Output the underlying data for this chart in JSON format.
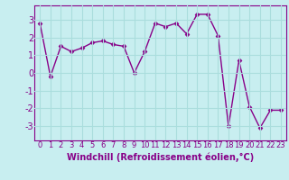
{
  "x": [
    0,
    1,
    2,
    3,
    4,
    5,
    6,
    7,
    8,
    9,
    10,
    11,
    12,
    13,
    14,
    15,
    16,
    17,
    18,
    19,
    20,
    21,
    22,
    23
  ],
  "y": [
    2.8,
    -0.2,
    1.5,
    1.2,
    1.4,
    1.7,
    1.8,
    1.6,
    1.5,
    0.0,
    1.2,
    2.8,
    2.6,
    2.8,
    2.2,
    3.3,
    3.3,
    2.1,
    -3.0,
    0.7,
    -1.9,
    -3.1,
    -2.1,
    -2.1
  ],
  "line_color": "#880088",
  "marker": "D",
  "marker_size": 2.5,
  "bg_color": "#c8eef0",
  "grid_color": "#aadddd",
  "ylim": [
    -3.8,
    3.8
  ],
  "yticks": [
    -3,
    -2,
    -1,
    0,
    1,
    2,
    3
  ],
  "xticks": [
    0,
    1,
    2,
    3,
    4,
    5,
    6,
    7,
    8,
    9,
    10,
    11,
    12,
    13,
    14,
    15,
    16,
    17,
    18,
    19,
    20,
    21,
    22,
    23
  ],
  "xlabel": "Windchill (Refroidissement éolien,°C)",
  "xlabel_fontsize": 7,
  "tick_fontsize": 6,
  "ytick_fontsize": 7,
  "line_width": 1.0
}
